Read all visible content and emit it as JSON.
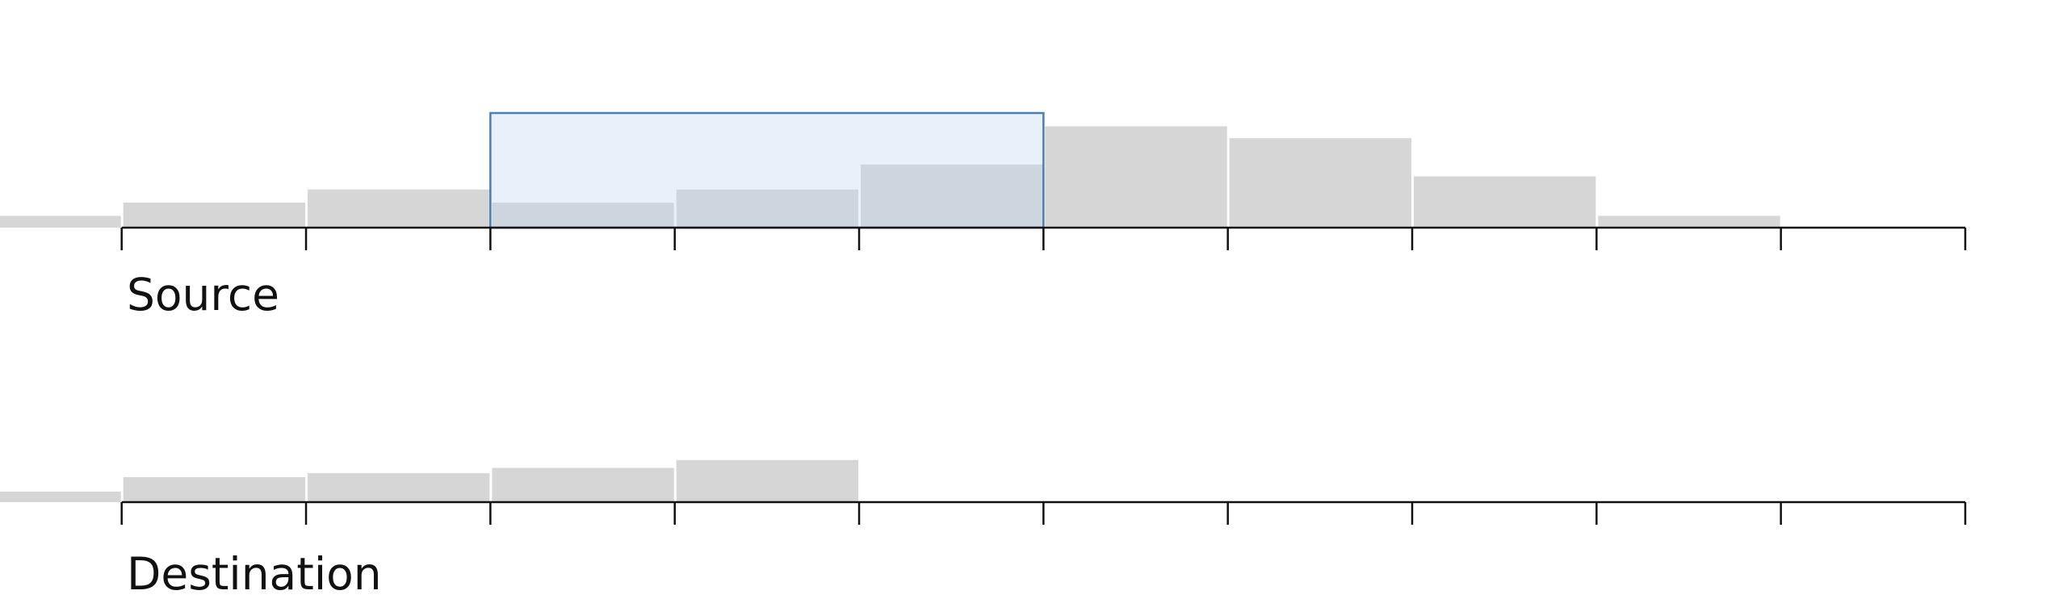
{
  "chart_data": [
    {
      "type": "histogram",
      "title": "Source",
      "bins": [
        -1,
        0,
        1,
        2,
        3,
        4,
        5,
        6,
        7,
        8,
        9,
        10
      ],
      "values": [
        9,
        19,
        29,
        19,
        29,
        48,
        77,
        68,
        39,
        9,
        0
      ],
      "color": "#d6d6d6",
      "xlim": [
        -0.66,
        10
      ],
      "xticks": [
        0,
        1,
        2,
        3,
        4,
        5,
        6,
        7,
        8,
        9,
        10
      ],
      "ylim": [
        0,
        100
      ],
      "brush": [
        2,
        5
      ],
      "brush_color": "#4a7fb0"
    },
    {
      "type": "histogram",
      "title": "Destination",
      "bins": [
        -1,
        0,
        1,
        2,
        3,
        4,
        5,
        6,
        7,
        8,
        9,
        10
      ],
      "values": [
        8,
        19,
        22,
        26,
        32,
        0,
        0,
        0,
        0,
        0,
        0
      ],
      "color": "#d6d6d6",
      "xlim": [
        -0.66,
        10
      ],
      "xticks": [
        0,
        1,
        2,
        3,
        4,
        5,
        6,
        7,
        8,
        9,
        10
      ],
      "ylim": [
        0,
        100
      ]
    }
  ]
}
